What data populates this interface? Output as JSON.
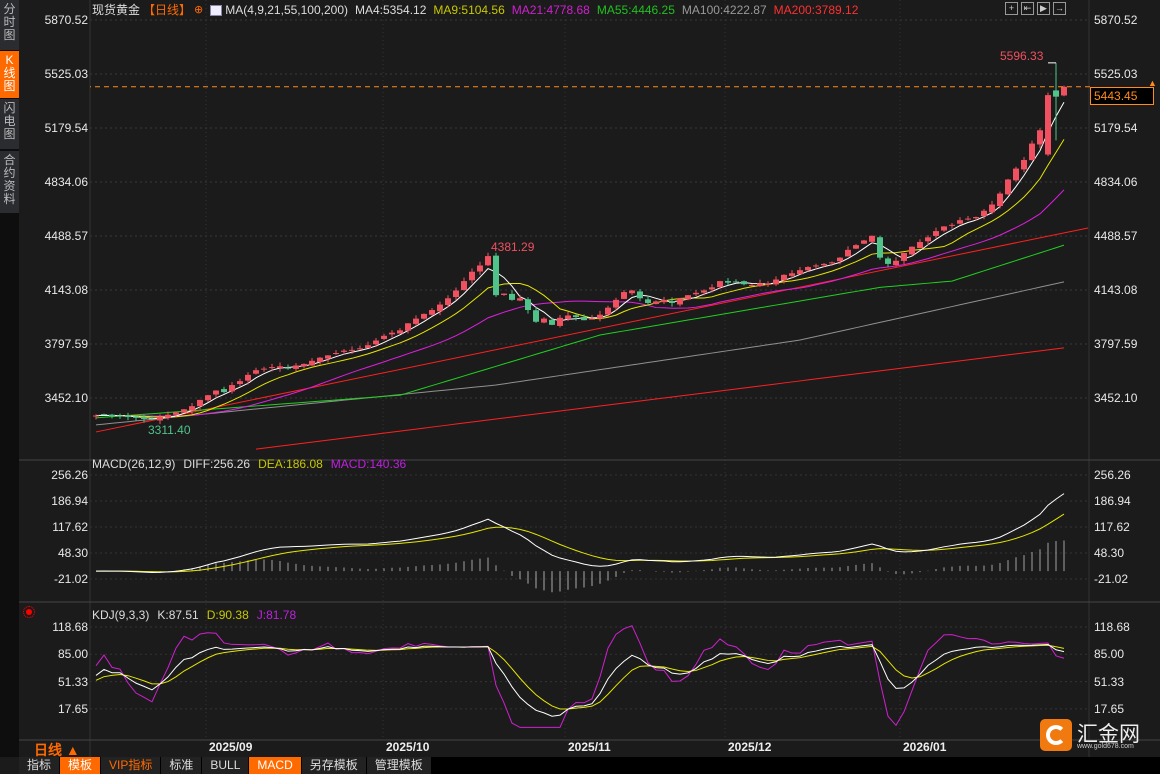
{
  "sidebar": {
    "items": [
      {
        "label": "分时图"
      },
      {
        "label": "K线图",
        "active": true
      },
      {
        "label": "闪电图"
      },
      {
        "label": "合约资料"
      }
    ]
  },
  "header": {
    "symbol": "现货黄金",
    "period": "【日线】",
    "ma_params": "MA(4,9,21,55,100,200)",
    "ma4": "MA4:5354.12",
    "ma9": "MA9:5104.56",
    "ma21": "MA21:4778.68",
    "ma55": "MA55:4446.25",
    "ma100": "MA100:4222.87",
    "ma200": "MA200:3789.12"
  },
  "macd_header": {
    "params": "MACD(26,12,9)",
    "diff": "DIFF:256.26",
    "dea": "DEA:186.08",
    "macd": "MACD:140.36"
  },
  "kdj_header": {
    "params": "KDJ(9,3,3)",
    "k": "K:87.51",
    "d": "D:90.38",
    "j": "J:81.78"
  },
  "price_axis": [
    "5870.52",
    "5525.03",
    "5179.54",
    "4834.06",
    "4488.57",
    "4143.08",
    "3797.59",
    "3452.10"
  ],
  "macd_axis": [
    "256.26",
    "186.94",
    "117.62",
    "48.30",
    "-21.02"
  ],
  "kdj_axis": [
    "118.68",
    "85.00",
    "51.33",
    "17.65"
  ],
  "x_axis": [
    "2025/09",
    "2025/10",
    "2025/11",
    "2025/12",
    "2026/01"
  ],
  "current_price": "5443.45",
  "annotations": {
    "high": "5596.33",
    "swing_high": "4381.29",
    "low": "3311.40"
  },
  "period_label": "日线 ▲",
  "tabs": [
    {
      "label": "指标"
    },
    {
      "label": "模板",
      "on": true
    },
    {
      "label": "VIP指标",
      "vip": true
    },
    {
      "label": "标准"
    },
    {
      "label": "BULL"
    },
    {
      "label": "MACD",
      "on": true
    },
    {
      "label": "另存模板"
    },
    {
      "label": "管理模板"
    }
  ],
  "logo": {
    "name": "汇金网",
    "url_text": "www.gold678.com"
  },
  "colors": {
    "up": "#f0505f",
    "down": "#4fc38a",
    "ma4": "#ffffff",
    "ma9": "#e6e600",
    "ma21": "#e020e0",
    "ma55": "#20d020",
    "ma100": "#909090",
    "ma200": "#ff2020",
    "accent": "#ff6a00"
  },
  "chart_data": {
    "type": "candlestick",
    "title": "现货黄金 日线",
    "price_range": [
      3452.1,
      5870.52
    ],
    "closes": [
      3340,
      3345,
      3335,
      3338,
      3330,
      3325,
      3318,
      3315,
      3330,
      3345,
      3360,
      3380,
      3400,
      3440,
      3470,
      3500,
      3490,
      3535,
      3560,
      3600,
      3630,
      3640,
      3650,
      3655,
      3645,
      3660,
      3670,
      3690,
      3710,
      3725,
      3740,
      3755,
      3760,
      3770,
      3790,
      3820,
      3850,
      3870,
      3885,
      3930,
      3960,
      3990,
      4015,
      4050,
      4090,
      4140,
      4200,
      4260,
      4300,
      4360,
      4110,
      4120,
      4080,
      4090,
      4015,
      3940,
      3960,
      3920,
      3965,
      3980,
      3970,
      3950,
      3960,
      3985,
      4030,
      4080,
      4130,
      4140,
      4090,
      4060,
      4070,
      4080,
      4060,
      4090,
      4110,
      4125,
      4140,
      4160,
      4200,
      4190,
      4195,
      4180,
      4175,
      4185,
      4185,
      4210,
      4240,
      4250,
      4270,
      4290,
      4300,
      4310,
      4320,
      4350,
      4400,
      4430,
      4460,
      4490,
      4350,
      4310,
      4330,
      4380,
      4420,
      4450,
      4480,
      4520,
      4550,
      4560,
      4590,
      4600,
      4610,
      4650,
      4690,
      4760,
      4850,
      4920,
      4975,
      5080,
      5165,
      5390,
      5380,
      5443.45
    ],
    "special": {
      "49": {
        "high": 4381.29
      },
      "7": {
        "low": 3311.4
      },
      "119": {
        "open": 5010
      },
      "120": {
        "open": 5420,
        "high": 5596.33,
        "low": 5100
      }
    },
    "ma55_anchors": [
      [
        0,
        3325
      ],
      [
        38,
        3470
      ],
      [
        63,
        3855
      ],
      [
        98,
        4160
      ],
      [
        107,
        4200
      ],
      [
        121,
        4430
      ]
    ],
    "ma100_anchors": [
      [
        0,
        3280
      ],
      [
        50,
        3535
      ],
      [
        88,
        3823
      ],
      [
        121,
        4195
      ]
    ],
    "ma200_anchors": [
      [
        20,
        3125
      ],
      [
        121,
        3773
      ]
    ],
    "trendline": [
      [
        0,
        3235
      ],
      [
        124,
        4540
      ]
    ],
    "macd_range": [
      -21.02,
      256.26
    ],
    "kdj_range": [
      17.65,
      118.68
    ]
  }
}
